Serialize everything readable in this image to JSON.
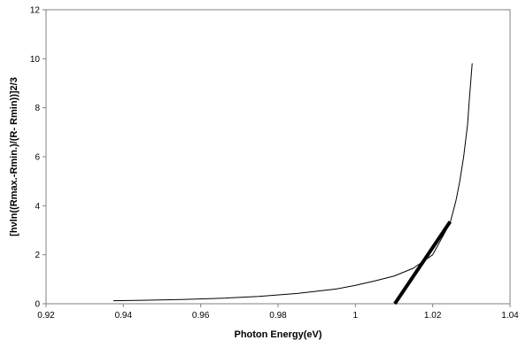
{
  "chart_data": {
    "type": "line",
    "title": "",
    "xlabel": "Photon Energy(eV)",
    "ylabel": "[hνln((Rmax.-Rmin.)/(R- Rmin))]2/3",
    "xlim": [
      0.92,
      1.04
    ],
    "ylim": [
      0,
      12
    ],
    "x_ticks": [
      "0.92",
      "0.94",
      "0.96",
      "0.98",
      "1",
      "1.02",
      "1.04"
    ],
    "y_ticks": [
      "0",
      "2",
      "4",
      "6",
      "8",
      "10",
      "12"
    ],
    "grid": false,
    "legend": "none",
    "series": [
      {
        "style": "thin",
        "color": "#000000",
        "points": [
          [
            0.9375,
            0.12
          ],
          [
            0.945,
            0.14
          ],
          [
            0.955,
            0.17
          ],
          [
            0.965,
            0.22
          ],
          [
            0.975,
            0.3
          ],
          [
            0.985,
            0.42
          ],
          [
            0.995,
            0.6
          ],
          [
            1.0,
            0.75
          ],
          [
            1.005,
            0.93
          ],
          [
            1.01,
            1.13
          ],
          [
            1.015,
            1.45
          ],
          [
            1.02,
            2.0
          ],
          [
            1.0245,
            3.3
          ],
          [
            1.026,
            4.2
          ],
          [
            1.027,
            5.0
          ],
          [
            1.028,
            6.0
          ],
          [
            1.029,
            7.3
          ],
          [
            1.0295,
            8.4
          ],
          [
            1.0302,
            9.8
          ]
        ]
      },
      {
        "style": "thick",
        "color": "#000000",
        "points": [
          [
            1.0102,
            0.0
          ],
          [
            1.0245,
            3.35
          ]
        ]
      }
    ]
  }
}
